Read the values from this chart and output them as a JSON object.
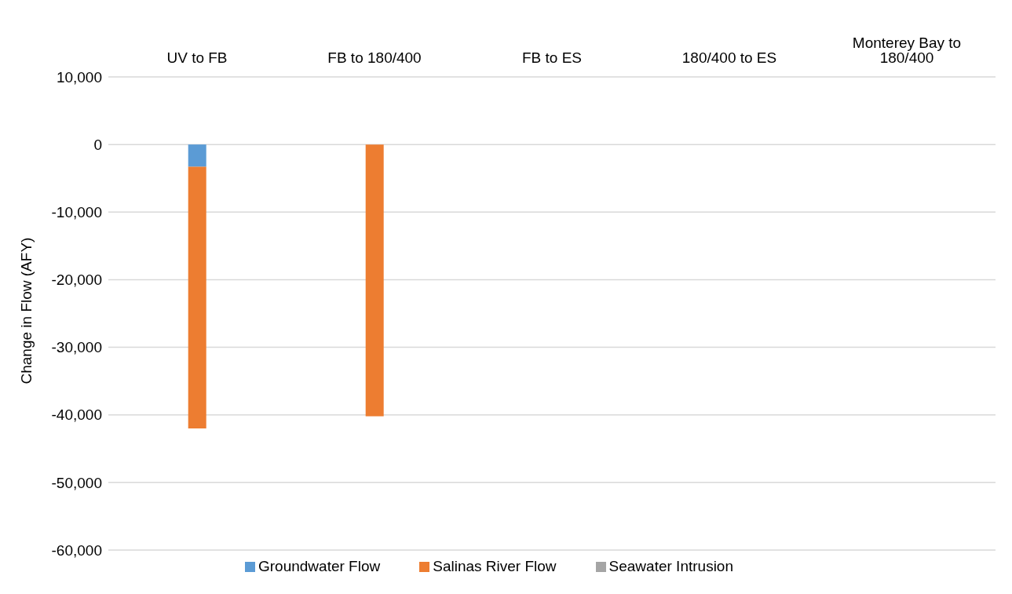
{
  "chart_data": {
    "type": "bar",
    "stacked": true,
    "categories": [
      "UV to FB",
      "FB to 180/400",
      "FB to ES",
      "180/400 to ES",
      "Monterey Bay to 180/400"
    ],
    "ylabel": "Change in Flow (AFY)",
    "ylim": [
      -60000,
      10000
    ],
    "yticks": [
      {
        "value": -60000,
        "label": "-60,000"
      },
      {
        "value": -50000,
        "label": "-50,000"
      },
      {
        "value": -40000,
        "label": "-40,000"
      },
      {
        "value": -30000,
        "label": "-30,000"
      },
      {
        "value": -20000,
        "label": "-20,000"
      },
      {
        "value": -10000,
        "label": "-10,000"
      },
      0,
      {
        "value": 10000,
        "label": "10,000"
      }
    ],
    "grid": "y",
    "legend": "bottom",
    "series": [
      {
        "name": "Groundwater Flow",
        "color": "#5b9bd5",
        "values": [
          -3300,
          0,
          0,
          0,
          0
        ]
      },
      {
        "name": "Salinas River Flow",
        "color": "#ed7d31",
        "values": [
          -38700,
          -40200,
          0,
          0,
          0
        ]
      },
      {
        "name": "Seawater Intrusion",
        "color": "#a5a5a5",
        "values": [
          0,
          0,
          0,
          0,
          0
        ]
      }
    ]
  }
}
